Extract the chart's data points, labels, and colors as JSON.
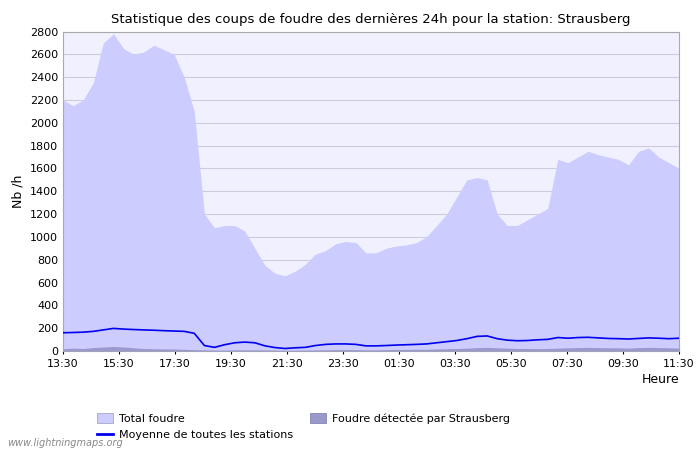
{
  "title": "Statistique des coups de foudre des dernières 24h pour la station: Strausberg",
  "xlabel": "Heure",
  "ylabel": "Nb /h",
  "ylim": [
    0,
    2800
  ],
  "yticks": [
    0,
    200,
    400,
    600,
    800,
    1000,
    1200,
    1400,
    1600,
    1800,
    2000,
    2200,
    2400,
    2600,
    2800
  ],
  "xtick_labels": [
    "13:30",
    "15:30",
    "17:30",
    "19:30",
    "21:30",
    "23:30",
    "01:30",
    "03:30",
    "05:30",
    "07:30",
    "09:30",
    "11:30"
  ],
  "background_color": "#ffffff",
  "plot_bg_color": "#f0f0ff",
  "grid_color": "#ccccdd",
  "total_foudre_color": "#ccccff",
  "strausberg_color": "#9999cc",
  "moyenne_color": "#0000ee",
  "watermark": "www.lightningmaps.org",
  "legend_label1": "Total foudre",
  "legend_label2": "Moyenne de toutes les stations",
  "legend_label3": "Foudre détectée par Strausberg",
  "total_foudre_values": [
    2200,
    2150,
    2200,
    2350,
    2700,
    2780,
    2650,
    2600,
    2620,
    2680,
    2640,
    2600,
    2400,
    2100,
    1200,
    1080,
    1100,
    1100,
    1050,
    900,
    750,
    680,
    660,
    700,
    760,
    850,
    880,
    940,
    960,
    950,
    860,
    860,
    900,
    920,
    930,
    950,
    1000,
    1100,
    1200,
    1350,
    1500,
    1520,
    1500,
    1200,
    1100,
    1100,
    1150,
    1200,
    1250,
    1680,
    1650,
    1700,
    1750,
    1720,
    1700,
    1680,
    1630,
    1750,
    1780,
    1700,
    1650,
    1600
  ],
  "strausberg_values": [
    20,
    25,
    22,
    30,
    35,
    40,
    35,
    28,
    22,
    20,
    18,
    18,
    15,
    12,
    10,
    8,
    8,
    10,
    10,
    10,
    10,
    8,
    7,
    7,
    8,
    10,
    10,
    12,
    12,
    12,
    10,
    10,
    12,
    14,
    14,
    15,
    15,
    18,
    20,
    22,
    25,
    30,
    32,
    28,
    25,
    22,
    22,
    20,
    22,
    25,
    28,
    30,
    32,
    30,
    28,
    28,
    25,
    30,
    32,
    30,
    28,
    25
  ],
  "moyenne_values": [
    160,
    162,
    165,
    172,
    185,
    198,
    192,
    188,
    185,
    182,
    178,
    175,
    172,
    155,
    48,
    32,
    55,
    72,
    78,
    72,
    45,
    30,
    22,
    28,
    32,
    48,
    58,
    62,
    62,
    58,
    45,
    45,
    48,
    52,
    55,
    58,
    62,
    72,
    82,
    92,
    108,
    128,
    132,
    108,
    95,
    90,
    92,
    98,
    102,
    118,
    112,
    118,
    120,
    115,
    110,
    108,
    105,
    110,
    115,
    112,
    108,
    112
  ]
}
